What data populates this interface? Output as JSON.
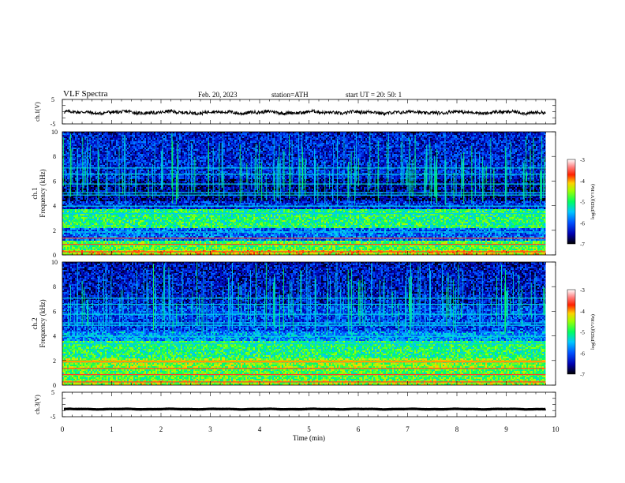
{
  "header": {
    "title": "VLF  Spectra",
    "date": "Feb. 20, 2023",
    "station": "station=ATH",
    "start": "start  UT  =    20: 50: 1"
  },
  "chart_data": [
    {
      "type": "line",
      "panel": "ch1-waveform",
      "ylabel": "ch.1(V)",
      "ylim": [
        -5,
        5
      ],
      "yticks": [
        "5",
        "-5"
      ],
      "xlim": [
        0,
        10
      ],
      "series": [
        {
          "values_approx_mean": -0.3,
          "amplitude_approx": 0.6
        }
      ],
      "line_color": "#000000"
    },
    {
      "type": "heatmap",
      "panel": "ch1-spectrogram",
      "ylabel": "ch.1\nFrequency  (kHz)",
      "ylim": [
        0,
        10
      ],
      "yticks": [
        "0",
        "2",
        "4",
        "6",
        "8",
        "10"
      ],
      "xlim": [
        0,
        9.8
      ],
      "colorbar": {
        "label": "log(PSD)(V²/Hz)",
        "range": [
          -7,
          -3
        ],
        "ticks": [
          "-3",
          "-4",
          "-5",
          "-6",
          "-7"
        ]
      },
      "bands_khz": [
        {
          "from": 0.0,
          "to": 0.5,
          "level": -4.3
        },
        {
          "from": 0.5,
          "to": 1.2,
          "level": -4.8
        },
        {
          "from": 1.2,
          "to": 2.2,
          "level": -5.9
        },
        {
          "from": 2.2,
          "to": 3.8,
          "level": -5.0
        },
        {
          "from": 3.8,
          "to": 4.4,
          "level": -6.2
        },
        {
          "from": 4.4,
          "to": 6.2,
          "level": -6.6
        },
        {
          "from": 6.2,
          "to": 10.0,
          "level": -6.3
        }
      ]
    },
    {
      "type": "heatmap",
      "panel": "ch2-spectrogram",
      "ylabel": "ch.2\nFrequency  (kHz)",
      "ylim": [
        0,
        10
      ],
      "yticks": [
        "0",
        "2",
        "4",
        "6",
        "8",
        "10"
      ],
      "xlim": [
        0,
        9.8
      ],
      "colorbar": {
        "label": "log(PSD)(V²/Hz)",
        "range": [
          -7,
          -3
        ],
        "ticks": [
          "-3",
          "-4",
          "-5",
          "-6",
          "-7"
        ]
      },
      "bands_khz": [
        {
          "from": 0.0,
          "to": 0.5,
          "level": -4.5
        },
        {
          "from": 0.5,
          "to": 1.3,
          "level": -4.8
        },
        {
          "from": 1.3,
          "to": 2.2,
          "level": -4.6
        },
        {
          "from": 2.2,
          "to": 3.6,
          "level": -5.0
        },
        {
          "from": 3.6,
          "to": 4.4,
          "level": -5.7
        },
        {
          "from": 4.4,
          "to": 6.5,
          "level": -6.1
        },
        {
          "from": 6.5,
          "to": 10.0,
          "level": -6.4
        }
      ]
    },
    {
      "type": "line",
      "panel": "ch3-waveform",
      "ylabel": "ch.3(V)",
      "ylim": [
        -5,
        5
      ],
      "yticks": [
        "5",
        "-5"
      ],
      "xlim": [
        0,
        10
      ],
      "xlabel": "Time  (min)",
      "xticks": [
        "0",
        "1",
        "2",
        "3",
        "4",
        "5",
        "6",
        "7",
        "8",
        "9",
        "10"
      ],
      "series": [
        {
          "values_approx_mean": -1.9,
          "amplitude_approx": 0.15
        }
      ],
      "line_color": "#000000"
    }
  ]
}
